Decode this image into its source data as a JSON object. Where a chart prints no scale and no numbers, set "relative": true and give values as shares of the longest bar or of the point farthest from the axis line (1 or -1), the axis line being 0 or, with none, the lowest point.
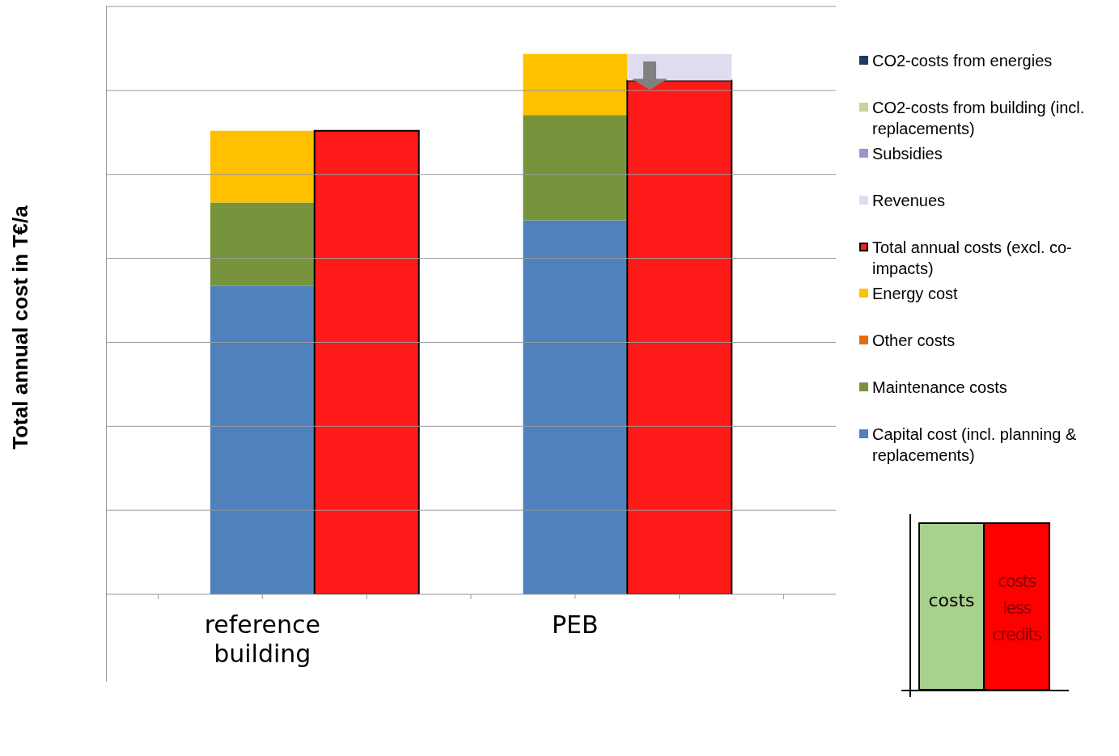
{
  "chart_data": {
    "type": "bar",
    "ylabel": "Total annual cost in T€/a",
    "categories": [
      null,
      "reference building",
      null,
      null,
      "PEB",
      null,
      null
    ],
    "relative": true,
    "stacked": true,
    "grid": "y",
    "legend": "right",
    "tick_labels": "x",
    "series": [
      {
        "name": "Capital cost (incl. planning & replacements)",
        "color": "#4f81bd",
        "values": [
          null,
          0.571,
          null,
          null,
          0.692,
          null,
          null
        ]
      },
      {
        "name": "Maintenance costs",
        "color": "#77933c",
        "values": [
          null,
          0.154,
          null,
          null,
          0.195,
          null,
          null
        ]
      },
      {
        "name": "Other costs",
        "color": "#e46c0a",
        "values": [
          null,
          null,
          null,
          null,
          null,
          null,
          null
        ]
      },
      {
        "name": "Energy cost",
        "color": "#ffc000",
        "values": [
          null,
          0.133,
          null,
          null,
          0.113,
          null,
          null
        ]
      },
      {
        "name": "Total annual costs (excl. co-impacts)",
        "color": "#ff1a1a",
        "values": [
          null,
          null,
          0.858,
          null,
          null,
          0.951,
          null
        ]
      },
      {
        "name": "Revenues",
        "color": "#e0dcef",
        "values": [
          null,
          null,
          null,
          null,
          null,
          0.049,
          null
        ]
      },
      {
        "name": "Subsidies",
        "color": "#a393c4",
        "values": [
          null,
          null,
          null,
          null,
          null,
          null,
          null
        ]
      },
      {
        "name": "CO2-costs from building (incl. replacements)",
        "color": "#c3d69b",
        "values": [
          null,
          null,
          null,
          null,
          null,
          null,
          null
        ]
      },
      {
        "name": "CO2-costs from energies",
        "color": "#1f3864",
        "values": [
          null,
          null,
          null,
          null,
          null,
          null,
          null
        ]
      }
    ],
    "annotations": [
      "costs",
      "costs less credits"
    ]
  }
}
